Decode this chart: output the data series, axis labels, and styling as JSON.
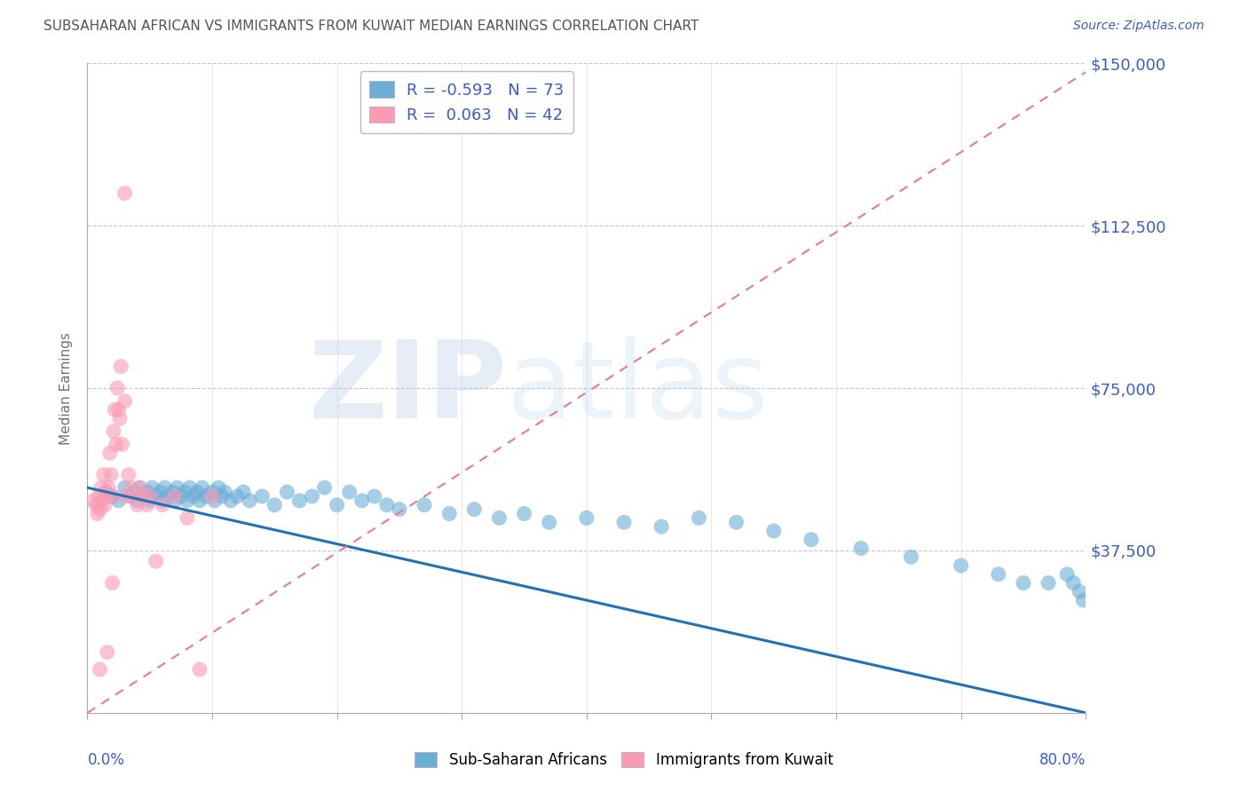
{
  "title": "SUBSAHARAN AFRICAN VS IMMIGRANTS FROM KUWAIT MEDIAN EARNINGS CORRELATION CHART",
  "source": "Source: ZipAtlas.com",
  "ylabel": "Median Earnings",
  "yticks": [
    0,
    37500,
    75000,
    112500,
    150000
  ],
  "ytick_labels": [
    "",
    "$37,500",
    "$75,000",
    "$112,500",
    "$150,000"
  ],
  "xlim": [
    0.0,
    0.8
  ],
  "ylim": [
    0,
    150000
  ],
  "legend_R1": "R = -0.593",
  "legend_N1": "N = 73",
  "legend_R2": "R =  0.063",
  "legend_N2": "N = 42",
  "label1": "Sub-Saharan Africans",
  "label2": "Immigrants from Kuwait",
  "color1": "#6baed6",
  "color2": "#fb9ab5",
  "trendline1_color": "#2171b5",
  "trendline2_color": "#e8789a",
  "background_color": "#ffffff",
  "grid_color": "#c8c8c8",
  "title_color": "#555555",
  "source_color": "#3a5cc5",
  "axis_label_color": "#3a5cc5",
  "watermark_zip": "ZIP",
  "watermark_atlas": "atlas",
  "blue_scatter_x": [
    0.015,
    0.02,
    0.025,
    0.03,
    0.035,
    0.038,
    0.04,
    0.042,
    0.045,
    0.048,
    0.05,
    0.052,
    0.055,
    0.058,
    0.06,
    0.062,
    0.065,
    0.068,
    0.07,
    0.072,
    0.075,
    0.078,
    0.08,
    0.082,
    0.085,
    0.088,
    0.09,
    0.092,
    0.095,
    0.1,
    0.102,
    0.105,
    0.108,
    0.11,
    0.115,
    0.12,
    0.125,
    0.13,
    0.14,
    0.15,
    0.16,
    0.17,
    0.18,
    0.19,
    0.2,
    0.21,
    0.22,
    0.23,
    0.24,
    0.25,
    0.27,
    0.29,
    0.31,
    0.33,
    0.35,
    0.37,
    0.4,
    0.43,
    0.46,
    0.49,
    0.52,
    0.55,
    0.58,
    0.62,
    0.66,
    0.7,
    0.73,
    0.75,
    0.77,
    0.785,
    0.79,
    0.795,
    0.798
  ],
  "blue_scatter_y": [
    51000,
    50000,
    49000,
    52000,
    50000,
    51000,
    49000,
    52000,
    50000,
    51000,
    49000,
    52000,
    50000,
    51000,
    49000,
    52000,
    50000,
    51000,
    49000,
    52000,
    50000,
    51000,
    49000,
    52000,
    50000,
    51000,
    49000,
    52000,
    50000,
    51000,
    49000,
    52000,
    50000,
    51000,
    49000,
    50000,
    51000,
    49000,
    50000,
    48000,
    51000,
    49000,
    50000,
    52000,
    48000,
    51000,
    49000,
    50000,
    48000,
    47000,
    48000,
    46000,
    47000,
    45000,
    46000,
    44000,
    45000,
    44000,
    43000,
    45000,
    44000,
    42000,
    40000,
    38000,
    36000,
    34000,
    32000,
    30000,
    30000,
    32000,
    30000,
    28000,
    26000
  ],
  "pink_scatter_x": [
    0.005,
    0.007,
    0.008,
    0.009,
    0.01,
    0.01,
    0.011,
    0.012,
    0.013,
    0.014,
    0.015,
    0.016,
    0.017,
    0.018,
    0.019,
    0.02,
    0.02,
    0.021,
    0.022,
    0.023,
    0.024,
    0.025,
    0.026,
    0.027,
    0.028,
    0.03,
    0.031,
    0.033,
    0.035,
    0.037,
    0.04,
    0.042,
    0.045,
    0.048,
    0.05,
    0.055,
    0.06,
    0.07,
    0.08,
    0.09,
    0.1,
    0.03
  ],
  "pink_scatter_y": [
    49000,
    48000,
    46000,
    50000,
    47000,
    10000,
    52000,
    49000,
    55000,
    48000,
    50000,
    14000,
    52000,
    60000,
    55000,
    50000,
    30000,
    65000,
    70000,
    62000,
    75000,
    70000,
    68000,
    80000,
    62000,
    72000,
    50000,
    55000,
    52000,
    50000,
    48000,
    52000,
    50000,
    48000,
    50000,
    35000,
    48000,
    50000,
    45000,
    10000,
    50000,
    120000
  ],
  "blue_trend_x": [
    0.0,
    0.8
  ],
  "blue_trend_y": [
    52000,
    0
  ],
  "pink_trend_x": [
    0.0,
    0.8
  ],
  "pink_trend_y": [
    0,
    148000
  ]
}
